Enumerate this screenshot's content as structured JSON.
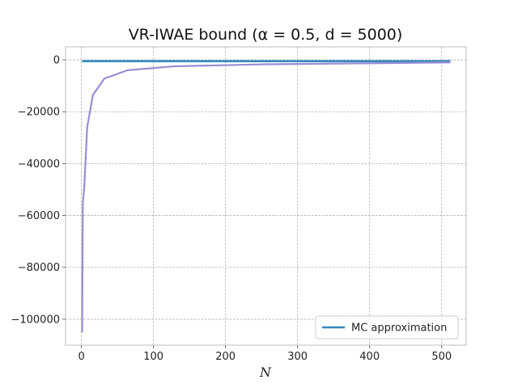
{
  "chart_data": {
    "type": "line",
    "title": "VR-IWAE bound (α = 0.5, d = 5000)",
    "xlabel": "N",
    "ylabel": "",
    "xlim": [
      -22,
      534
    ],
    "ylim": [
      -110000,
      5000
    ],
    "xticks": [
      0,
      100,
      200,
      300,
      400,
      500
    ],
    "yticks": [
      0,
      -20000,
      -40000,
      -60000,
      -80000,
      -100000
    ],
    "xtick_labels": [
      "0",
      "100",
      "200",
      "300",
      "400",
      "500"
    ],
    "ytick_labels": [
      "0",
      "−20000",
      "−40000",
      "−60000",
      "−80000",
      "−100000"
    ],
    "grid": true,
    "legend_position": "lower-right",
    "series": [
      {
        "name": "MC approximation",
        "color": "#348abd",
        "x": [
          1,
          512
        ],
        "y": [
          -500,
          -500
        ]
      },
      {
        "color": "#988ed5",
        "x": [
          1,
          2,
          4,
          8,
          16,
          32,
          64,
          128,
          256,
          512
        ],
        "y": [
          -105000,
          -55000,
          -49000,
          -26000,
          -13500,
          -7200,
          -4000,
          -2500,
          -1700,
          -1000
        ]
      }
    ]
  }
}
